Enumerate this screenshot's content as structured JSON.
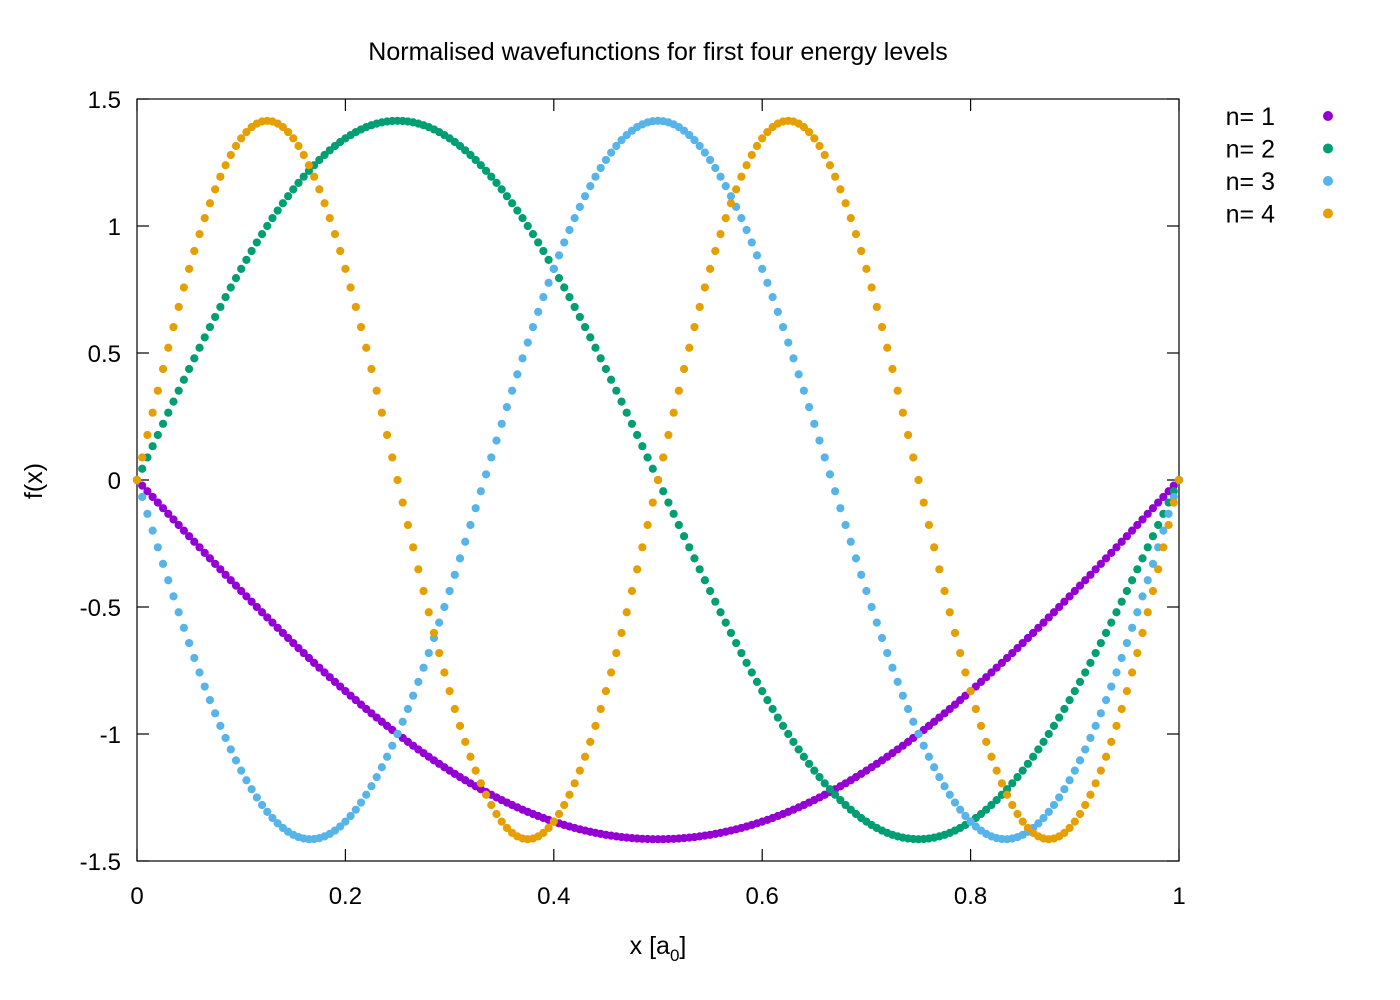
{
  "chart_data": {
    "type": "scatter",
    "title": "Normalised wavefunctions for first four energy levels",
    "xlabel": "x [a0]",
    "xlabel_main": "x [a",
    "xlabel_sub": "0",
    "xlabel_end": "]",
    "ylabel": "f(x)",
    "xlim": [
      0,
      1
    ],
    "ylim": [
      -1.5,
      1.5
    ],
    "x_ticks": [
      0,
      0.2,
      0.4,
      0.6,
      0.8,
      1
    ],
    "x_tick_labels": [
      "0",
      "0.2",
      "0.4",
      "0.6",
      "0.8",
      "1"
    ],
    "y_ticks": [
      1.5,
      1,
      0.5,
      0,
      -0.5,
      -1,
      -1.5
    ],
    "y_tick_labels": [
      "1.5",
      "1",
      "0.5",
      "0",
      "-0.5",
      "-1",
      "-1.5"
    ],
    "grid": false,
    "legend_position": "outside-right-top",
    "x_samples": 200,
    "series": [
      {
        "name": "n= 1",
        "color": "#9400d3",
        "function": "-sqrt(2)*sin(1*pi*x)",
        "x": [
          0,
          0.1,
          0.2,
          0.3,
          0.4,
          0.5,
          0.6,
          0.7,
          0.8,
          0.9,
          1
        ],
        "values": [
          0,
          -0.437,
          -0.831,
          -1.144,
          -1.345,
          -1.414,
          -1.345,
          -1.144,
          -0.831,
          -0.437,
          0
        ]
      },
      {
        "name": "n= 2",
        "color": "#009e73",
        "function": "sqrt(2)*sin(2*pi*x)",
        "x": [
          0,
          0.1,
          0.2,
          0.25,
          0.3,
          0.4,
          0.5,
          0.6,
          0.7,
          0.75,
          0.8,
          0.9,
          1
        ],
        "values": [
          0,
          0.831,
          1.345,
          1.414,
          1.345,
          0.831,
          0,
          -0.831,
          -1.345,
          -1.414,
          -1.345,
          -0.831,
          0
        ]
      },
      {
        "name": "n= 3",
        "color": "#56b4e9",
        "function": "-sqrt(2)*sin(3*pi*x)",
        "x": [
          0,
          0.1,
          0.1667,
          0.2,
          0.3,
          0.4,
          0.5,
          0.6,
          0.7,
          0.8,
          0.8333,
          0.9,
          1
        ],
        "values": [
          0,
          -1.144,
          -1.414,
          -1.345,
          -0.437,
          0.831,
          1.414,
          0.831,
          -0.437,
          -1.345,
          -1.414,
          -1.144,
          0
        ]
      },
      {
        "name": "n= 4",
        "color": "#e69f00",
        "function": "sqrt(2)*sin(4*pi*x)",
        "x": [
          0,
          0.125,
          0.2,
          0.3,
          0.375,
          0.4,
          0.5,
          0.6,
          0.625,
          0.7,
          0.8,
          0.875,
          0.9,
          1
        ],
        "values": [
          0,
          1.414,
          0.831,
          -0.831,
          -1.414,
          -1.345,
          0,
          1.345,
          1.414,
          0.831,
          -0.831,
          -1.414,
          -1.345,
          0
        ]
      }
    ]
  }
}
